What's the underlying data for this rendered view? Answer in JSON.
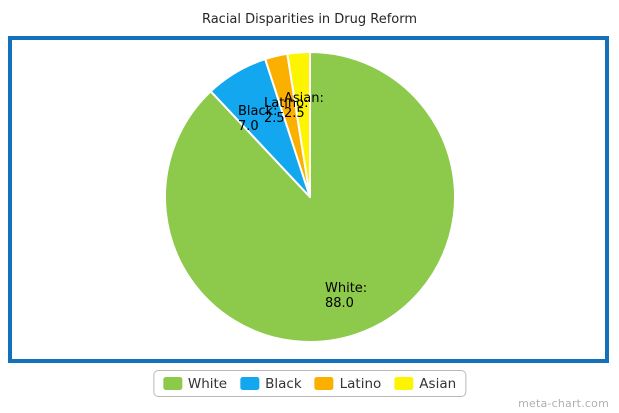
{
  "page": {
    "background": "#ffffff",
    "frame_color": "#1470B8",
    "watermark": "meta-chart.com"
  },
  "chart_data": {
    "type": "pie",
    "title": "Racial Disparities in Drug Reform",
    "categories": [
      "White",
      "Black",
      "Latino",
      "Asian"
    ],
    "values": [
      88.0,
      7.0,
      2.5,
      2.5
    ],
    "colors": [
      "#8DC94B",
      "#12A7EE",
      "#FBB000",
      "#FCF400"
    ],
    "start_angle": "top",
    "direction": "clockwise",
    "slice_border_color": "#ffffff",
    "legend_position": "bottom",
    "slice_labels": [
      {
        "text": "White:",
        "value": "88.0"
      },
      {
        "text": "Black:",
        "value": "7.0"
      },
      {
        "text": "Latino:",
        "value": "2.5"
      },
      {
        "text": "Asian:",
        "value": "2.5"
      }
    ]
  }
}
